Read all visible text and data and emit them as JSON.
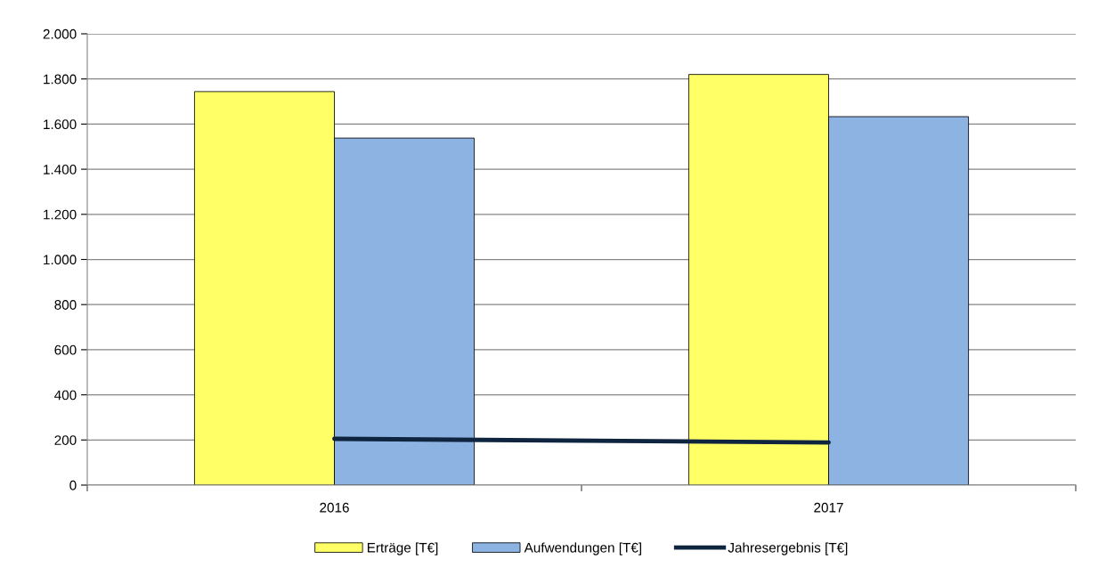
{
  "chart_data": {
    "type": "bar",
    "categories": [
      "2016",
      "2017"
    ],
    "series": [
      {
        "name": "Erträge [T€]",
        "color": "#ffff66",
        "values": [
          1744,
          1820
        ]
      },
      {
        "name": "Aufwendungen [T€]",
        "color": "#8db3e2",
        "values": [
          1538,
          1633
        ]
      },
      {
        "name": "Jahresergebnis [T€]",
        "color": "#0f243e",
        "type": "line",
        "values": [
          205,
          189
        ]
      }
    ],
    "ylim": [
      0,
      2000
    ],
    "yticks": [
      0,
      200,
      400,
      600,
      800,
      {
        "value": 1000,
        "label": "1.000"
      },
      {
        "value": 1200,
        "label": "1.200"
      },
      {
        "value": 1400,
        "label": "1.400"
      },
      {
        "value": 1600,
        "label": "1.600"
      },
      {
        "value": 1800,
        "label": "1.800"
      },
      {
        "value": 2000,
        "label": "2.000"
      }
    ],
    "grid": "y",
    "legend": "bottom",
    "marker": "none",
    "line_style": "solid"
  }
}
